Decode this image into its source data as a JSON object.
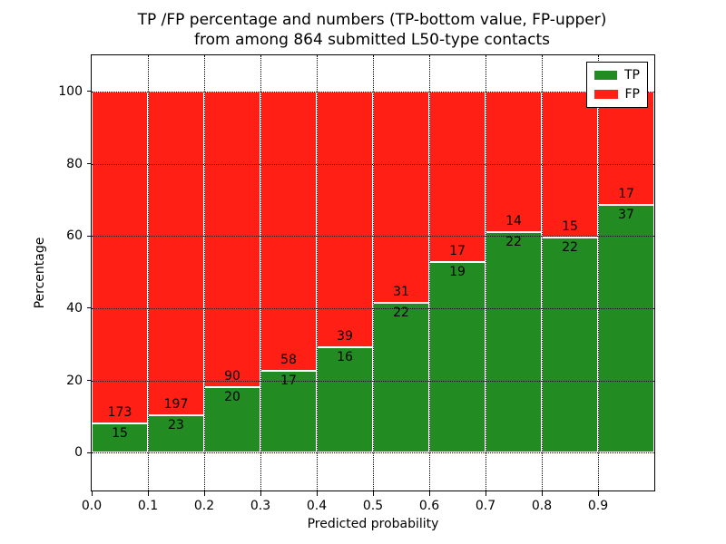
{
  "title": {
    "line1": "TP /FP percentage and numbers (TP-bottom value, FP-upper)",
    "line2": "from among 864 submitted L50-type contacts"
  },
  "chart_data": {
    "type": "bar",
    "subtype": "stacked-percentage",
    "title": "TP /FP percentage and numbers (TP-bottom value, FP-upper) from among 864 submitted L50-type contacts",
    "xlabel": "Predicted probability",
    "ylabel": "Percentage",
    "total_submitted": 864,
    "x_tick_labels": [
      "0.0",
      "0.1",
      "0.2",
      "0.3",
      "0.4",
      "0.5",
      "0.6",
      "0.7",
      "0.8",
      "0.9"
    ],
    "y_ticks": [
      0,
      20,
      40,
      60,
      80,
      100
    ],
    "ylim": [
      -10.5,
      110
    ],
    "xlim": [
      0.0,
      1.0
    ],
    "bin_width": 0.1,
    "grid": "dotted",
    "legend_position": "upper right",
    "series": [
      {
        "name": "TP",
        "color": "#228B22",
        "counts": [
          15,
          23,
          20,
          17,
          16,
          22,
          19,
          22,
          22,
          37
        ]
      },
      {
        "name": "FP",
        "color": "#FF1F15",
        "counts": [
          173,
          197,
          90,
          58,
          39,
          31,
          17,
          14,
          15,
          17
        ]
      }
    ],
    "tp_percent_by_bin": [
      7.98,
      10.45,
      18.18,
      22.67,
      29.09,
      41.51,
      52.78,
      61.11,
      59.46,
      68.52
    ]
  }
}
